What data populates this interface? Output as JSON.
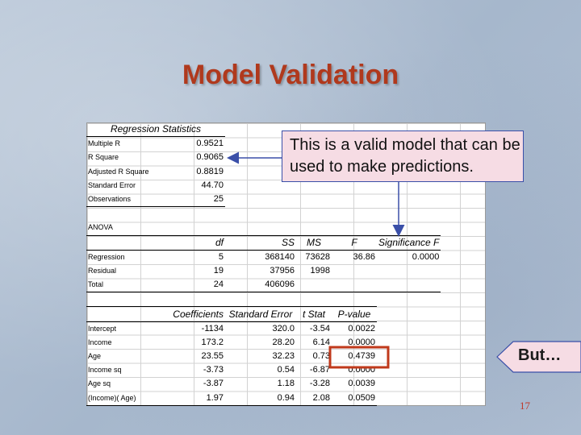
{
  "title": "Model Validation",
  "callout_text": "This is a valid model that can be used to make predictions.",
  "but_label": "But…",
  "page_number": "17",
  "regression_statistics": {
    "header": "Regression Statistics",
    "rows": [
      {
        "label": "Multiple R",
        "value": "0.9521"
      },
      {
        "label": "R Square",
        "value": "0.9065"
      },
      {
        "label": "Adjusted R Square",
        "value": "0.8819"
      },
      {
        "label": "Standard Error",
        "value": "44.70"
      },
      {
        "label": "Observations",
        "value": "25"
      }
    ]
  },
  "anova": {
    "label": "ANOVA",
    "headers": [
      "df",
      "SS",
      "MS",
      "F",
      "Significance F"
    ],
    "rows": [
      {
        "label": "Regression",
        "df": "5",
        "ss": "368140",
        "ms": "73628",
        "f": "36.86",
        "sig": "0.0000"
      },
      {
        "label": "Residual",
        "df": "19",
        "ss": "37956",
        "ms": "1998",
        "f": "",
        "sig": ""
      },
      {
        "label": "Total",
        "df": "24",
        "ss": "406096",
        "ms": "",
        "f": "",
        "sig": ""
      }
    ]
  },
  "coefficients": {
    "headers": [
      "Coefficients",
      "Standard Error",
      "t Stat",
      "P-value"
    ],
    "rows": [
      {
        "label": "Intercept",
        "coef": "-1134",
        "se": "320.0",
        "t": "-3.54",
        "p": "0.0022"
      },
      {
        "label": "Income",
        "coef": "173.2",
        "se": "28.20",
        "t": "6.14",
        "p": "0.0000"
      },
      {
        "label": "Age",
        "coef": "23.55",
        "se": "32.23",
        "t": "0.73",
        "p": "0.4739"
      },
      {
        "label": "Income sq",
        "coef": "-3.73",
        "se": "0.54",
        "t": "-6.87",
        "p": "0.0000"
      },
      {
        "label": "Age sq",
        "coef": "-3.87",
        "se": "1.18",
        "t": "-3.28",
        "p": "0.0039"
      },
      {
        "label": "(Income)( Age)",
        "coef": "1.97",
        "se": "0.94",
        "t": "2.08",
        "p": "0.0509"
      }
    ]
  },
  "colors": {
    "title": "#b0391d",
    "highlight_box": "#c0391b",
    "arrow": "#3a4fa8",
    "callout_fill": "#f6dce4"
  }
}
